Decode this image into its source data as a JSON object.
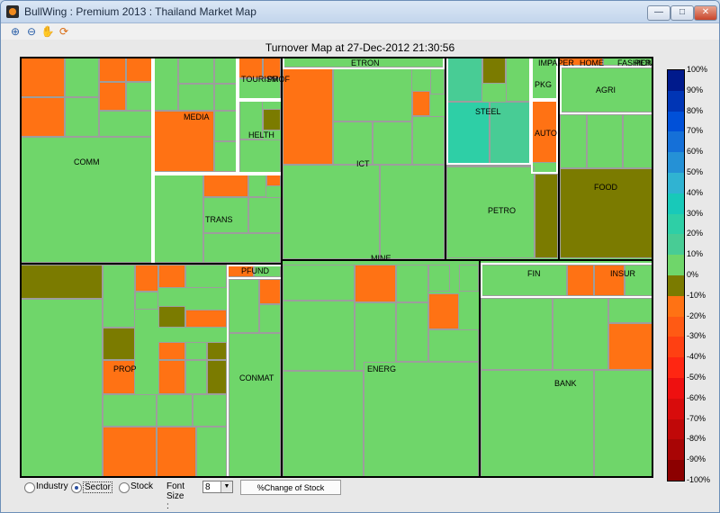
{
  "window": {
    "title": "BullWing : Premium 2013 : Thailand Market Map",
    "minimize": "—",
    "maximize": "□",
    "close": "✕"
  },
  "toolbar": {
    "tools": [
      "zoom-in-icon",
      "zoom-out-icon",
      "pan-icon",
      "rotate-icon"
    ]
  },
  "map": {
    "title": "Turnover Map at 27-Dec-2012 21:30:56",
    "sector_labels": {
      "comm": "COMM",
      "media": "MEDIA",
      "tourism": "TOURISM",
      "prof": "PROF",
      "helth": "HELTH",
      "trans": "TRANS",
      "etron": "ETRON",
      "ict": "ICT",
      "imp": "IMP",
      "paper": "PAPER",
      "home": "HOME",
      "fashion": "FASHION",
      "pers": "PERSON",
      "pkg": "PKG",
      "steel": "STEEL",
      "auto": "AUTO",
      "petro": "PETRO",
      "agri": "AGRI",
      "food": "FOOD",
      "pfund": "PFUND",
      "prop": "PROP",
      "conmat": "CONMAT",
      "mine": "MINE",
      "energ": "ENERG",
      "fin": "FIN",
      "insur": "INSUR",
      "bank": "BANK"
    }
  },
  "colorbar": {
    "ticks": [
      "100%",
      "90%",
      "80%",
      "70%",
      "60%",
      "50%",
      "40%",
      "30%",
      "20%",
      "10%",
      "0%",
      "-10%",
      "-20%",
      "-30%",
      "-40%",
      "-50%",
      "-60%",
      "-70%",
      "-80%",
      "-90%",
      "-100%"
    ],
    "colors": [
      "#001a8c",
      "#0035b5",
      "#0050d8",
      "#1570d8",
      "#2591d6",
      "#30b3d2",
      "#18c9b9",
      "#2ecfa6",
      "#48cc95",
      "#6fd66a",
      "#7b7b00",
      "#ff7214",
      "#ff5a14",
      "#ff4012",
      "#ff2612",
      "#ee1010",
      "#d80c0c",
      "#c00808",
      "#a80505",
      "#8c0000"
    ]
  },
  "controls": {
    "industry_label": "Industry",
    "sector_label": "Sector",
    "stock_label": "Stock",
    "selected": "Sector",
    "font_size_label": "Font Size :",
    "font_size_value": "8",
    "change_button": "%Change of Stock"
  }
}
